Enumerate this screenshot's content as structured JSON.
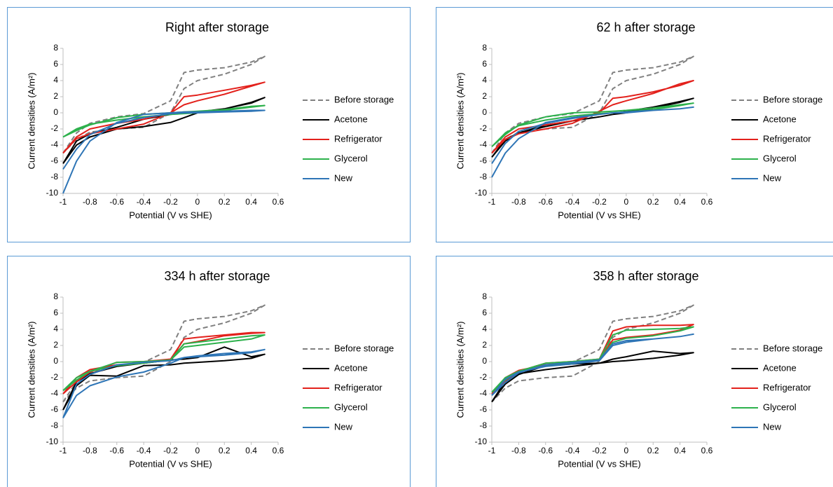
{
  "chart_data": [
    {
      "type": "line",
      "title": "Right after storage",
      "xlabel": "Potential (V vs SHE)",
      "ylabel": "Current densities (A/m²)",
      "x": [
        -1,
        -0.9,
        -0.8,
        -0.6,
        -0.4,
        -0.2,
        -0.1,
        0,
        0.2,
        0.4,
        0.5,
        0.4,
        0.2,
        0,
        -0.1,
        -0.2,
        -0.4,
        -0.6,
        -0.8,
        -0.9,
        -1
      ],
      "xlim": [
        -1,
        0.6
      ],
      "xticks": [
        -1,
        -0.8,
        -0.6,
        -0.4,
        -0.2,
        0,
        0.2,
        0.4,
        0.6
      ],
      "ylim": [
        -10,
        8
      ],
      "yticks": [
        -10,
        -8,
        -6,
        -4,
        -2,
        0,
        2,
        4,
        6,
        8
      ],
      "series": [
        {
          "name": "Before storage",
          "color": "#808080",
          "dashed": true,
          "values": [
            -5,
            -2.5,
            -1.3,
            -0.5,
            -0.1,
            1.5,
            5,
            5.3,
            5.6,
            6.3,
            7,
            6,
            4.8,
            4,
            3,
            0,
            -1.8,
            -2,
            -2.4,
            -3.3,
            -5
          ]
        },
        {
          "name": "Acetone",
          "color": "#000000",
          "values": [
            -6.3,
            -4,
            -3,
            -2,
            -1.7,
            -1.2,
            -0.6,
            0,
            0.5,
            1.3,
            1.9,
            1.2,
            0.5,
            0.1,
            0,
            -0.2,
            -0.8,
            -1.8,
            -2.6,
            -3.5,
            -6.3
          ]
        },
        {
          "name": "Refrigerator",
          "color": "#e3211c",
          "values": [
            -5,
            -3,
            -2,
            -1.3,
            -0.8,
            0,
            2,
            2.2,
            2.8,
            3.4,
            3.8,
            3.3,
            2.3,
            1.5,
            1,
            0,
            -1.4,
            -2,
            -2.6,
            -3.2,
            -5
          ]
        },
        {
          "name": "Glycerol",
          "color": "#2db14c",
          "values": [
            -3,
            -2.2,
            -1.5,
            -0.6,
            -0.2,
            0,
            0.1,
            0.2,
            0.4,
            0.8,
            0.9,
            0.7,
            0.3,
            0,
            -0.1,
            -0.2,
            -0.5,
            -0.9,
            -1.4,
            -2,
            -3
          ]
        },
        {
          "name": "New",
          "color": "#2e75b6",
          "values": [
            -10,
            -6,
            -3.5,
            -1.2,
            -0.2,
            0,
            0.1,
            0.1,
            0.2,
            0.3,
            0.3,
            0.2,
            0.1,
            0,
            0,
            -0.1,
            -0.6,
            -1.3,
            -2.7,
            -4.5,
            -7
          ]
        }
      ]
    },
    {
      "type": "line",
      "title": "62 h after storage",
      "xlabel": "Potential (V vs SHE)",
      "ylabel": "Current densities (A/m²)",
      "x": [
        -1,
        -0.9,
        -0.8,
        -0.6,
        -0.4,
        -0.2,
        -0.1,
        0,
        0.2,
        0.4,
        0.5,
        0.4,
        0.2,
        0,
        -0.1,
        -0.2,
        -0.4,
        -0.6,
        -0.8,
        -0.9,
        -1
      ],
      "xlim": [
        -1,
        0.6
      ],
      "xticks": [
        -1,
        -0.8,
        -0.6,
        -0.4,
        -0.2,
        0,
        0.2,
        0.4,
        0.6
      ],
      "ylim": [
        -10,
        8
      ],
      "yticks": [
        -10,
        -8,
        -6,
        -4,
        -2,
        0,
        2,
        4,
        6,
        8
      ],
      "series": [
        {
          "name": "Before storage",
          "color": "#808080",
          "dashed": true,
          "values": [
            -5,
            -2.5,
            -1.3,
            -0.5,
            -0.1,
            1.5,
            5,
            5.3,
            5.6,
            6.3,
            7,
            6,
            4.8,
            4,
            3,
            0,
            -1.8,
            -2,
            -2.4,
            -3.3,
            -5
          ]
        },
        {
          "name": "Acetone",
          "color": "#000000",
          "values": [
            -5.5,
            -3.5,
            -2.5,
            -1.5,
            -1,
            -0.5,
            -0.2,
            0.2,
            0.7,
            1.4,
            1.8,
            1.3,
            0.6,
            0,
            -0.2,
            -0.5,
            -1,
            -1.7,
            -2.5,
            -3.3,
            -5.5
          ]
        },
        {
          "name": "Refrigerator",
          "color": "#e3211c",
          "values": [
            -5,
            -3,
            -2,
            -1.5,
            -1,
            0,
            1.8,
            2,
            2.6,
            3.4,
            4,
            3.6,
            2.4,
            1.5,
            1,
            0.2,
            -1.3,
            -2,
            -2.6,
            -3.3,
            -5
          ]
        },
        {
          "name": "Glycerol",
          "color": "#2db14c",
          "values": [
            -4.2,
            -2.7,
            -1.5,
            -0.5,
            0,
            0.1,
            0.2,
            0.3,
            0.6,
            1,
            1.2,
            0.9,
            0.4,
            0.1,
            0,
            -0.1,
            -0.4,
            -0.9,
            -1.6,
            -2.5,
            -4.2
          ]
        },
        {
          "name": "New",
          "color": "#2e75b6",
          "values": [
            -8,
            -5,
            -3.2,
            -1.2,
            -0.6,
            -0.2,
            0,
            0.1,
            0.3,
            0.5,
            0.7,
            0.5,
            0.3,
            0,
            0,
            -0.2,
            -0.7,
            -1.3,
            -2.3,
            -3.8,
            -6.3
          ]
        }
      ]
    },
    {
      "type": "line",
      "title": "334 h after storage",
      "xlabel": "Potential (V vs SHE)",
      "ylabel": "Current densities (A/m²)",
      "x": [
        -1,
        -0.9,
        -0.8,
        -0.6,
        -0.4,
        -0.2,
        -0.1,
        0,
        0.2,
        0.4,
        0.5,
        0.4,
        0.2,
        0,
        -0.1,
        -0.2,
        -0.4,
        -0.6,
        -0.8,
        -0.9,
        -1
      ],
      "xlim": [
        -1,
        0.6
      ],
      "xticks": [
        -1,
        -0.8,
        -0.6,
        -0.4,
        -0.2,
        0,
        0.2,
        0.4,
        0.6
      ],
      "ylim": [
        -10,
        8
      ],
      "yticks": [
        -10,
        -8,
        -6,
        -4,
        -2,
        0,
        2,
        4,
        6,
        8
      ],
      "series": [
        {
          "name": "Before storage",
          "color": "#808080",
          "dashed": true,
          "values": [
            -5,
            -2.5,
            -1.3,
            -0.5,
            -0.1,
            1.5,
            5,
            5.3,
            5.6,
            6.3,
            7,
            6,
            4.8,
            4,
            3,
            0,
            -1.8,
            -2,
            -2.4,
            -3.3,
            -5
          ]
        },
        {
          "name": "Acetone",
          "color": "#000000",
          "values": [
            -6,
            -3,
            -1.7,
            -1.8,
            -0.5,
            -0.4,
            -0.2,
            -0.1,
            0.1,
            0.4,
            0.9,
            0.6,
            1.8,
            0.5,
            0.3,
            0.2,
            -0.2,
            -0.6,
            -1.5,
            -2.5,
            -6
          ]
        },
        {
          "name": "Refrigerator",
          "color": "#e3211c",
          "values": [
            -4,
            -2.5,
            -1.3,
            -0.1,
            0,
            0.3,
            2.8,
            3,
            3.3,
            3.6,
            3.6,
            3.5,
            3.2,
            2.5,
            2.2,
            0.3,
            -0.2,
            -0.4,
            -1,
            -2,
            -4
          ]
        },
        {
          "name": "Glycerol",
          "color": "#2db14c",
          "values": [
            -3.6,
            -2.3,
            -1.2,
            -0.1,
            0,
            0.2,
            2.2,
            2.4,
            2.8,
            3.2,
            3.3,
            2.8,
            2.4,
            2,
            1.8,
            0.2,
            -0.2,
            -0.5,
            -1.2,
            -2,
            -3.6
          ]
        },
        {
          "name": "New",
          "color": "#2e75b6",
          "values": [
            -7,
            -4.2,
            -3,
            -1.9,
            -1.3,
            -0.2,
            0.5,
            0.6,
            0.8,
            1.1,
            1.5,
            1.2,
            1,
            0.7,
            0.5,
            0.1,
            -0.1,
            -0.4,
            -1.6,
            -2.8,
            -7
          ]
        }
      ]
    },
    {
      "type": "line",
      "title": "358 h after storage",
      "xlabel": "Potential (V vs SHE)",
      "ylabel": "Current densities (A/m²)",
      "x": [
        -1,
        -0.9,
        -0.8,
        -0.6,
        -0.4,
        -0.2,
        -0.1,
        0,
        0.2,
        0.4,
        0.5,
        0.4,
        0.2,
        0,
        -0.1,
        -0.2,
        -0.4,
        -0.6,
        -0.8,
        -0.9,
        -1
      ],
      "xlim": [
        -1,
        0.6
      ],
      "xticks": [
        -1,
        -0.8,
        -0.6,
        -0.4,
        -0.2,
        0,
        0.2,
        0.4,
        0.6
      ],
      "ylim": [
        -10,
        8
      ],
      "yticks": [
        -10,
        -8,
        -6,
        -4,
        -2,
        0,
        2,
        4,
        6,
        8
      ],
      "series": [
        {
          "name": "Before storage",
          "color": "#808080",
          "dashed": true,
          "values": [
            -5,
            -2.5,
            -1.3,
            -0.5,
            -0.1,
            1.5,
            5,
            5.3,
            5.6,
            6.3,
            7,
            6,
            4.8,
            4,
            3,
            0,
            -1.8,
            -2,
            -2.4,
            -3.3,
            -5
          ]
        },
        {
          "name": "Acetone",
          "color": "#000000",
          "values": [
            -5,
            -2.8,
            -1.6,
            -0.5,
            -0.3,
            -0.2,
            0.3,
            0.6,
            1.3,
            1,
            1.1,
            0.8,
            0.4,
            0.1,
            0,
            -0.2,
            -0.6,
            -1,
            -1.5,
            -2.4,
            -5
          ]
        },
        {
          "name": "Refrigerator",
          "color": "#e3211c",
          "values": [
            -4,
            -2.4,
            -1.2,
            -0.2,
            0,
            0.3,
            3.8,
            4.3,
            4.5,
            4.5,
            4.6,
            3.9,
            3.3,
            3,
            2.7,
            0.3,
            -0.1,
            -0.4,
            -1.1,
            -2,
            -4
          ]
        },
        {
          "name": "Glycerol",
          "color": "#2db14c",
          "values": [
            -3.8,
            -2.3,
            -1.2,
            -0.2,
            0,
            0.3,
            3.3,
            3.9,
            4,
            4.1,
            4.3,
            3.8,
            3.2,
            2.9,
            2.4,
            0.2,
            -0.2,
            -0.5,
            -1.2,
            -2,
            -3.8
          ]
        },
        {
          "name": "New",
          "color": "#2e75b6",
          "values": [
            -4.2,
            -2.6,
            -1.4,
            -0.4,
            -0.1,
            0.2,
            2.2,
            2.6,
            2.8,
            3.1,
            3.4,
            3.1,
            2.8,
            2.4,
            2,
            0.1,
            -0.3,
            -0.6,
            -1.3,
            -2.2,
            -4.2
          ]
        }
      ]
    }
  ]
}
